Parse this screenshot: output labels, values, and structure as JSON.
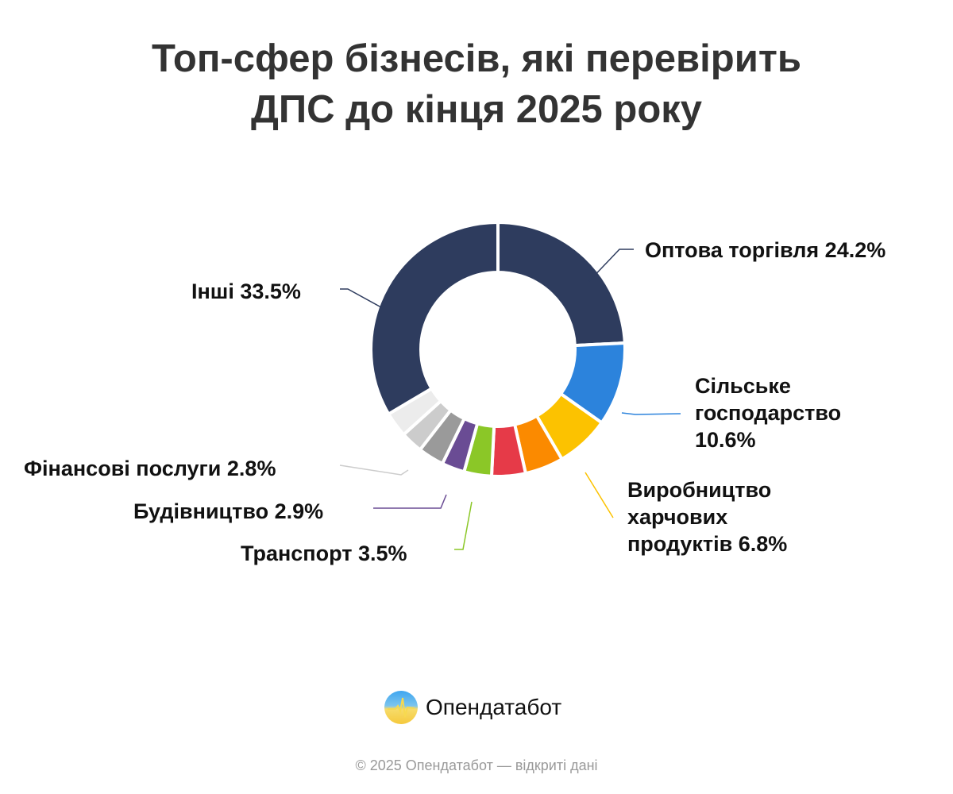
{
  "title_line1": "Топ-сфер бізнесів, які перевірить",
  "title_line2": "ДПС до кінця 2025 року",
  "chart_data": {
    "type": "pie",
    "subtype": "donut",
    "title": "Топ-сфер бізнесів, які перевірить ДПС до кінця 2025 року",
    "unit": "%",
    "slices": [
      {
        "label": "Оптова торгівля 24.2%",
        "value": 24.2,
        "color": "#2e3c5e"
      },
      {
        "label": "Сільське господарство 10.6%",
        "value": 10.6,
        "color": "#2c83dc"
      },
      {
        "label": "Виробництво харчових продуктів 6.8%",
        "value": 6.8,
        "color": "#fcc200"
      },
      {
        "label": null,
        "value": 4.9,
        "color": "#fb8a00"
      },
      {
        "label": null,
        "value": 4.3,
        "color": "#e63a48"
      },
      {
        "label": "Транспорт 3.5%",
        "value": 3.5,
        "color": "#8bc727"
      },
      {
        "label": "Будівництво 2.9%",
        "value": 2.9,
        "color": "#6a4c94"
      },
      {
        "label": null,
        "value": 3.3,
        "color": "#9a9a9a"
      },
      {
        "label": "Фінансові послуги 2.8%",
        "value": 2.8,
        "color": "#cccccc"
      },
      {
        "label": null,
        "value": 3.2,
        "color": "#ececec"
      },
      {
        "label": "Інші 33.5%",
        "value": 33.5,
        "color": "#2e3c5e"
      }
    ]
  },
  "labels": {
    "optova": "Оптова торгівля 24.2%",
    "silske_1": "Сільське",
    "silske_2": "господарство",
    "silske_3": "10.6%",
    "vyrob_1": "Виробництво",
    "vyrob_2": "харчових",
    "vyrob_3": "продуктів 6.8%",
    "transport": "Транспорт 3.5%",
    "budivn": "Будівництво 2.9%",
    "finans": "Фінансові послуги 2.8%",
    "inshi": "Інші 33.5%"
  },
  "brand": "Опендатабот",
  "footer": "© 2025 Опендатабот — відкриті дані"
}
